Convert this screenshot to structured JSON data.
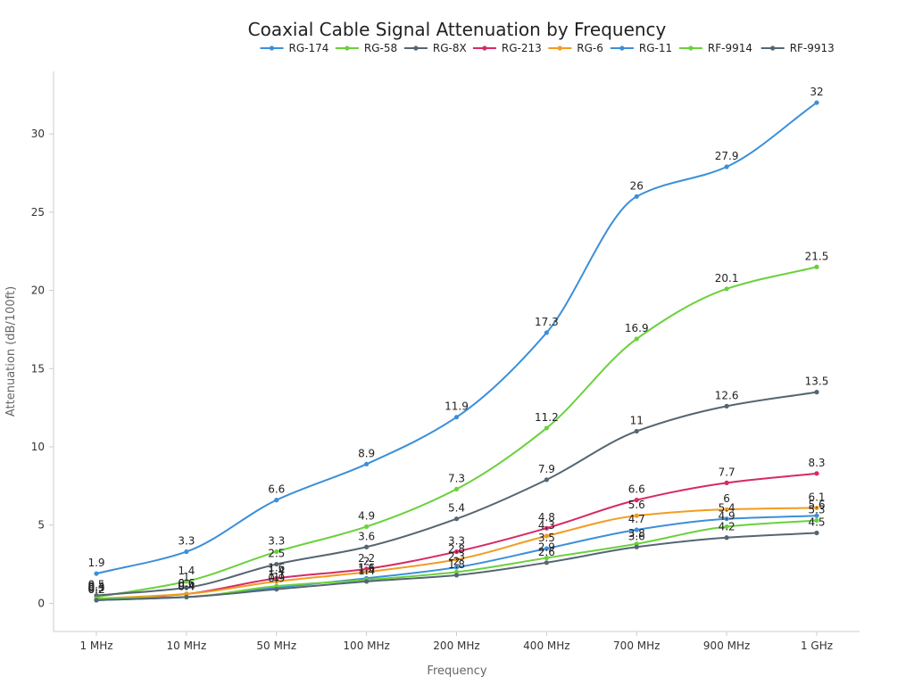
{
  "chart_data": {
    "type": "line",
    "title": "Coaxial Cable Signal Attenuation by Frequency",
    "xlabel": "Frequency",
    "ylabel": "Attenuation (dB/100ft)",
    "categories": [
      "1 MHz",
      "10 MHz",
      "50 MHz",
      "100 MHz",
      "200 MHz",
      "400 MHz",
      "700 MHz",
      "900 MHz",
      "1 GHz"
    ],
    "ylim": [
      -1.8,
      34
    ],
    "yticks": [
      0,
      5,
      10,
      15,
      20,
      25,
      30
    ],
    "grid": false,
    "legend_position": "top",
    "smooth": true,
    "series": [
      {
        "name": "RG-174",
        "color": "#3b8fd9",
        "values": [
          1.9,
          3.3,
          6.6,
          8.9,
          11.9,
          17.3,
          26,
          27.9,
          32
        ]
      },
      {
        "name": "RG-58",
        "color": "#6ad13c",
        "values": [
          0.4,
          1.4,
          3.3,
          4.9,
          7.3,
          11.2,
          16.9,
          20.1,
          21.5
        ]
      },
      {
        "name": "RG-8X",
        "color": "#546672",
        "values": [
          0.5,
          1,
          2.5,
          3.6,
          5.4,
          7.9,
          11,
          12.6,
          13.5
        ]
      },
      {
        "name": "RG-213",
        "color": "#d62a66",
        "values": [
          0.2,
          0.6,
          1.6,
          2.2,
          3.3,
          4.8,
          6.6,
          7.7,
          8.3
        ]
      },
      {
        "name": "RG-6",
        "color": "#f29c1f",
        "values": [
          0.3,
          0.6,
          1.4,
          2,
          2.8,
          4.3,
          5.6,
          6,
          6.1
        ]
      },
      {
        "name": "RG-11",
        "color": "#3b8fd9",
        "values": [
          0.2,
          0.4,
          1,
          1.6,
          2.3,
          3.5,
          4.7,
          5.4,
          5.6
        ]
      },
      {
        "name": "RF-9914",
        "color": "#6ad13c",
        "values": [
          0.3,
          0.4,
          1.1,
          1.5,
          2,
          2.9,
          3.8,
          4.9,
          5.3
        ]
      },
      {
        "name": "RF-9913",
        "color": "#546672",
        "values": [
          0.2,
          0.4,
          0.9,
          1.4,
          1.8,
          2.6,
          3.6,
          4.2,
          4.5
        ]
      }
    ]
  }
}
